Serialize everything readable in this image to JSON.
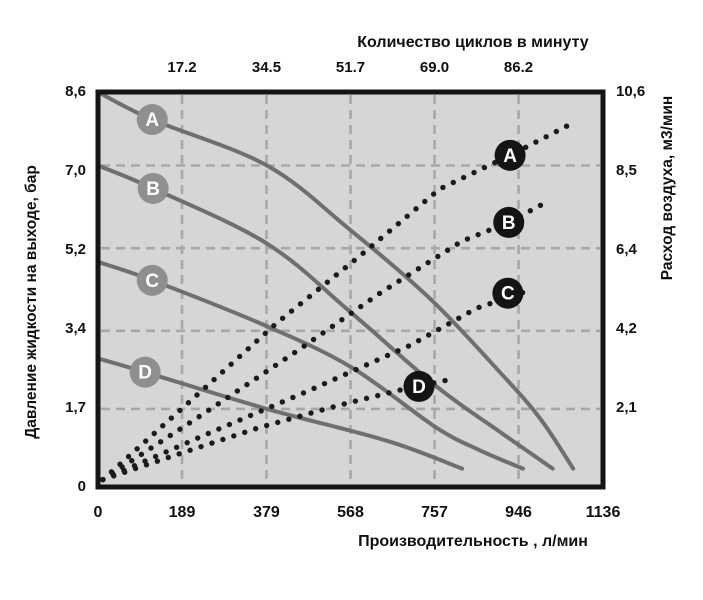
{
  "chart_data": {
    "type": "line",
    "title_top": "Количество циклов в минуту",
    "xlabel_bottom": "Производительность , л/мин",
    "ylabel_left": "Давление жидкости на выходе, бар",
    "ylabel_right": "Расход воздуха, м3/мин",
    "x_axis_bottom": {
      "ticks": [
        "0",
        "189",
        "379",
        "568",
        "757",
        "946",
        "1136"
      ],
      "values": [
        0,
        189,
        379,
        568,
        757,
        946,
        1136
      ],
      "range": [
        0,
        1136
      ]
    },
    "x_axis_top": {
      "ticks": [
        "17.2",
        "34.5",
        "51.7",
        "69.0",
        "86.2"
      ],
      "at_flow": [
        189,
        379,
        568,
        757,
        946
      ]
    },
    "y_axis_left": {
      "ticks": [
        "8,6",
        "7,0",
        "5,2",
        "3,4",
        "1,7",
        "0"
      ],
      "values": [
        8.6,
        7.0,
        5.2,
        3.4,
        1.7,
        0
      ],
      "range": [
        0,
        8.6
      ]
    },
    "y_axis_right": {
      "ticks": [
        "10,6",
        "8,5",
        "6,4",
        "4,2",
        "2,1"
      ],
      "values": [
        10.6,
        8.5,
        6.4,
        4.2,
        2.1
      ],
      "range": [
        0,
        10.6
      ]
    },
    "gridlines": {
      "vertical_at_flow": [
        189,
        379,
        568,
        757,
        946
      ],
      "horizontal_at_bar": [
        7.0,
        5.2,
        3.4,
        1.7
      ]
    },
    "solid_series": [
      {
        "label": "A",
        "style": "solid",
        "axis": "left",
        "points": [
          [
            0,
            8.6
          ],
          [
            122,
            8.0
          ],
          [
            380,
            7.0
          ],
          [
            567,
            5.6
          ],
          [
            747,
            4.1
          ],
          [
            904,
            2.5
          ],
          [
            994,
            1.5
          ],
          [
            1069,
            0.4
          ]
        ],
        "label_at": [
          122,
          8.0
        ]
      },
      {
        "label": "B",
        "style": "solid",
        "axis": "left",
        "points": [
          [
            0,
            7.0
          ],
          [
            124,
            6.5
          ],
          [
            380,
            5.3
          ],
          [
            569,
            3.8
          ],
          [
            760,
            2.2
          ],
          [
            904,
            1.2
          ],
          [
            1023,
            0.4
          ]
        ],
        "label_at": [
          124,
          6.5
        ]
      },
      {
        "label": "C",
        "style": "solid",
        "axis": "left",
        "points": [
          [
            0,
            4.9
          ],
          [
            122,
            4.5
          ],
          [
            380,
            3.5
          ],
          [
            571,
            2.6
          ],
          [
            760,
            1.3
          ],
          [
            859,
            0.8
          ],
          [
            956,
            0.4
          ]
        ],
        "label_at": [
          122,
          4.5
        ]
      },
      {
        "label": "D",
        "style": "solid",
        "axis": "left",
        "points": [
          [
            0,
            2.8
          ],
          [
            106,
            2.5
          ],
          [
            380,
            1.7
          ],
          [
            652,
            1.0
          ],
          [
            819,
            0.4
          ]
        ],
        "label_at": [
          106,
          2.5
        ]
      }
    ],
    "dotted_series": [
      {
        "label": "A",
        "style": "dotted",
        "axis": "right",
        "points": [
          [
            11,
            0.2
          ],
          [
            207,
            2.3
          ],
          [
            402,
            4.4
          ],
          [
            589,
            6.2
          ],
          [
            769,
            8.0
          ],
          [
            927,
            8.9
          ],
          [
            1057,
            9.7
          ]
        ],
        "label_at": [
          927,
          8.9
        ]
      },
      {
        "label": "B",
        "style": "dotted",
        "axis": "right",
        "points": [
          [
            11,
            0.2
          ],
          [
            229,
            1.9
          ],
          [
            454,
            3.7
          ],
          [
            634,
            5.2
          ],
          [
            819,
            6.6
          ],
          [
            924,
            7.1
          ],
          [
            1017,
            7.7
          ]
        ],
        "label_at": [
          924,
          7.1
        ]
      },
      {
        "label": "C",
        "style": "dotted",
        "axis": "right",
        "points": [
          [
            11,
            0.2
          ],
          [
            241,
            1.4
          ],
          [
            477,
            2.6
          ],
          [
            702,
            3.8
          ],
          [
            852,
            4.8
          ],
          [
            976,
            5.3
          ]
        ],
        "label_at": [
          922,
          5.2
        ]
      },
      {
        "label": "D",
        "style": "dotted",
        "axis": "right",
        "points": [
          [
            11,
            0.2
          ],
          [
            185,
            0.9
          ],
          [
            364,
            1.6
          ],
          [
            544,
            2.2
          ],
          [
            679,
            2.6
          ],
          [
            798,
            2.9
          ]
        ],
        "label_at": [
          722,
          2.7
        ]
      }
    ],
    "colors": {
      "plot_bg": "#d6d6d6",
      "grid": "#a8a8a8",
      "border": "#141414",
      "solid_curve": "#6f6f6f",
      "gray_marker": "#8f8f8f",
      "black_marker": "#141414",
      "dot": "#1b1b1b",
      "marker_letter": "#ffffff",
      "text": "#111111"
    }
  }
}
